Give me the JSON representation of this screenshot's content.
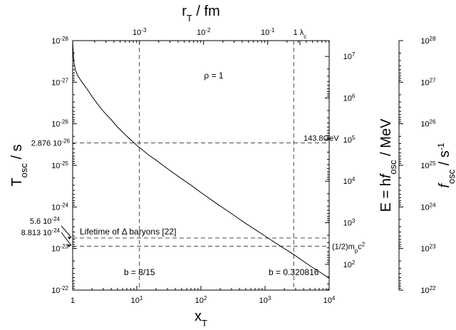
{
  "chart_data": {
    "type": "line",
    "x_scale": "log",
    "y_scale": "log",
    "xlim": [
      1,
      10000
    ],
    "ylim": [
      1e-22,
      1e-28
    ],
    "y_inverted": true,
    "grid": false,
    "xlabel": {
      "base": "x",
      "sub": "T"
    },
    "ylabel": {
      "base": "T",
      "sub": "osc",
      "unit": " / s"
    },
    "x_ticks": [
      {
        "value": 1,
        "label": "1",
        "exp": ""
      },
      {
        "value": 10,
        "label": "10",
        "exp": "1"
      },
      {
        "value": 100,
        "label": "10",
        "exp": "2"
      },
      {
        "value": 1000,
        "label": "10",
        "exp": "3"
      },
      {
        "value": 10000,
        "label": "10",
        "exp": "4"
      }
    ],
    "y_ticks": [
      {
        "value": 1e-28,
        "label": "10",
        "exp": "-28"
      },
      {
        "value": 1e-27,
        "label": "10",
        "exp": "-27"
      },
      {
        "value": 1e-26,
        "label": "10",
        "exp": "-26"
      },
      {
        "value": 1e-25,
        "label": "10",
        "exp": "-25"
      },
      {
        "value": 1e-24,
        "label": "10",
        "exp": "-24"
      },
      {
        "value": 1e-23,
        "label": "10",
        "exp": "-23"
      },
      {
        "value": 1e-22,
        "label": "10",
        "exp": "-22"
      }
    ],
    "top_axis": {
      "label": {
        "base": "r",
        "sub": "T",
        "unit": " / fm"
      },
      "ticks": [
        {
          "at_x": 11,
          "label": "10",
          "exp": "-3"
        },
        {
          "at_x": 110,
          "label": "10",
          "exp": "-2"
        },
        {
          "at_x": 1100,
          "label": "10",
          "exp": "-1"
        },
        {
          "at_x": 3500,
          "label": "1",
          "exp": "",
          "extra": "λ",
          "extra_sub": "c"
        }
      ]
    },
    "right_axis_energy": {
      "label": {
        "pre": "E = h",
        "f": "f",
        "sub": "osc",
        "unit": " / MeV"
      },
      "ticks": [
        {
          "at_y": 2.4e-28,
          "label": "10",
          "exp": "7"
        },
        {
          "at_y": 2.4e-27,
          "label": "10",
          "exp": "6"
        },
        {
          "at_y": 2.4e-26,
          "label": "10",
          "exp": "5"
        },
        {
          "at_y": 2.4e-25,
          "label": "10",
          "exp": "4"
        },
        {
          "at_y": 2.4e-24,
          "label": "10",
          "exp": "3"
        },
        {
          "at_y": 2.4e-23,
          "label": "10",
          "exp": "2"
        }
      ]
    },
    "right_axis_freq": {
      "label": {
        "f": "f",
        "sub": "osc",
        "unit": " / s",
        "exp": "-1"
      },
      "ticks": [
        {
          "at_y": 1e-28,
          "label": "10",
          "exp": "28"
        },
        {
          "at_y": 1e-27,
          "label": "10",
          "exp": "27"
        },
        {
          "at_y": 1e-26,
          "label": "10",
          "exp": "26"
        },
        {
          "at_y": 1e-25,
          "label": "10",
          "exp": "25"
        },
        {
          "at_y": 1e-24,
          "label": "10",
          "exp": "24"
        },
        {
          "at_y": 1e-23,
          "label": "10",
          "exp": "23"
        },
        {
          "at_y": 1e-22,
          "label": "10",
          "exp": "22"
        }
      ]
    },
    "series": [
      {
        "x": [
          1,
          1.02,
          1.05,
          1.1,
          1.2,
          1.4,
          1.7,
          2,
          2.5,
          3,
          4,
          5,
          7,
          10,
          15,
          20,
          30,
          50,
          70,
          100,
          150,
          200,
          300,
          500,
          700,
          1000,
          1500,
          2000,
          3000,
          5000,
          7000,
          10000
        ],
        "y": [
          1e-28,
          2e-28,
          3.5e-28,
          5e-28,
          7e-28,
          1e-27,
          1.5e-27,
          2.2e-27,
          3.5e-27,
          5e-27,
          8e-27,
          1.2e-26,
          2e-26,
          3.3e-26,
          5.5e-26,
          7.5e-26,
          1.2e-25,
          2.1e-25,
          3e-25,
          4.5e-25,
          7e-25,
          9.5e-25,
          1.45e-24,
          2.5e-24,
          3.5e-24,
          5e-24,
          7.6e-24,
          1e-23,
          1.5e-23,
          2.6e-23,
          3.6e-23,
          5.2e-23
        ]
      }
    ],
    "reference_lines": {
      "h_upper": {
        "y": 2.876e-26,
        "label": "2.876 10",
        "exp": "-26",
        "right_label": "143.8GeV"
      },
      "h_lifetime": {
        "y": 5.6e-24,
        "label": "5.6 10",
        "exp": "-24",
        "text": "Lifetime of Δ baryons [22]"
      },
      "h_lower": {
        "y": 8.813e-24,
        "label": "8.813 10",
        "exp": "-24",
        "right_label_pre": "(1/2)m",
        "right_label_sub": "p",
        "right_label_mid": "c",
        "right_label_exp": "2"
      },
      "v_left": {
        "x": 11.0,
        "text": "b = 8/15"
      },
      "v_right": {
        "x": 2800,
        "text": "b = 0.320816"
      }
    },
    "annotations": {
      "rho": "ρ = 1"
    }
  }
}
